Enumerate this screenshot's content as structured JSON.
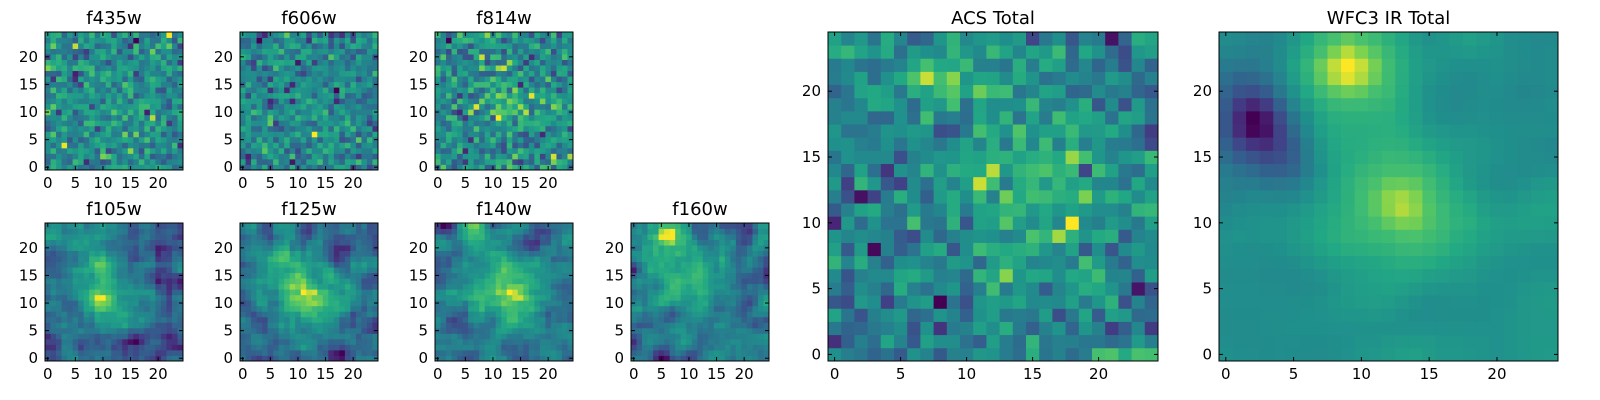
{
  "chart_data": [
    {
      "type": "heatmap",
      "title": "f435w",
      "xticks": [
        "0",
        "5",
        "10",
        "15",
        "20"
      ],
      "yticks": [
        "0",
        "5",
        "10",
        "15",
        "20"
      ],
      "xlim": [
        -0.5,
        24.5
      ],
      "ylim": [
        -0.5,
        24.5
      ],
      "colormap": "viridis",
      "grid": false,
      "seed": 11,
      "smooth": 0,
      "noise": 1.0,
      "blobs": [
        [
          13,
          12,
          0.3,
          3
        ]
      ]
    },
    {
      "type": "heatmap",
      "title": "f606w",
      "xticks": [
        "0",
        "5",
        "10",
        "15",
        "20"
      ],
      "yticks": [
        "0",
        "5",
        "10",
        "15",
        "20"
      ],
      "xlim": [
        -0.5,
        24.5
      ],
      "ylim": [
        -0.5,
        24.5
      ],
      "colormap": "viridis",
      "grid": false,
      "seed": 23,
      "smooth": 0,
      "noise": 1.0,
      "blobs": [
        [
          8,
          23,
          0.4,
          2
        ],
        [
          12,
          10,
          0.3,
          3
        ]
      ]
    },
    {
      "type": "heatmap",
      "title": "f814w",
      "xticks": [
        "0",
        "5",
        "10",
        "15",
        "20"
      ],
      "yticks": [
        "0",
        "5",
        "10",
        "15",
        "20"
      ],
      "xlim": [
        -0.5,
        24.5
      ],
      "ylim": [
        -0.5,
        24.5
      ],
      "colormap": "viridis",
      "grid": false,
      "seed": 37,
      "smooth": 0,
      "noise": 1.0,
      "blobs": [
        [
          8,
          23,
          0.6,
          2
        ],
        [
          14,
          12,
          0.6,
          3
        ]
      ]
    },
    {
      "type": "heatmap",
      "title": "f105w",
      "xticks": [
        "0",
        "5",
        "10",
        "15",
        "20"
      ],
      "yticks": [
        "0",
        "5",
        "10",
        "15",
        "20"
      ],
      "xlim": [
        -0.5,
        24.5
      ],
      "ylim": [
        -0.5,
        24.5
      ],
      "colormap": "viridis",
      "grid": false,
      "seed": 41,
      "smooth": 1,
      "noise": 0.9,
      "blobs": [
        [
          11,
          11,
          0.8,
          4
        ],
        [
          3,
          22,
          0.4,
          2
        ],
        [
          8,
          20,
          0.4,
          3
        ]
      ]
    },
    {
      "type": "heatmap",
      "title": "f125w",
      "xticks": [
        "0",
        "5",
        "10",
        "15",
        "20"
      ],
      "yticks": [
        "0",
        "5",
        "10",
        "15",
        "20"
      ],
      "xlim": [
        -0.5,
        24.5
      ],
      "ylim": [
        -0.5,
        24.5
      ],
      "colormap": "viridis",
      "grid": false,
      "seed": 53,
      "smooth": 1,
      "noise": 0.9,
      "blobs": [
        [
          12,
          11,
          0.8,
          4
        ],
        [
          7,
          18,
          0.5,
          3
        ]
      ]
    },
    {
      "type": "heatmap",
      "title": "f140w",
      "xticks": [
        "0",
        "5",
        "10",
        "15",
        "20"
      ],
      "yticks": [
        "0",
        "5",
        "10",
        "15",
        "20"
      ],
      "xlim": [
        -0.5,
        24.5
      ],
      "ylim": [
        -0.5,
        24.5
      ],
      "colormap": "viridis",
      "grid": false,
      "seed": 67,
      "smooth": 1,
      "noise": 0.9,
      "blobs": [
        [
          13,
          12,
          0.8,
          4
        ],
        [
          8,
          21,
          0.5,
          3
        ]
      ]
    },
    {
      "type": "heatmap",
      "title": "f160w",
      "xticks": [
        "0",
        "5",
        "10",
        "15",
        "20"
      ],
      "yticks": [
        "0",
        "5",
        "10",
        "15",
        "20"
      ],
      "xlim": [
        -0.5,
        24.5
      ],
      "ylim": [
        -0.5,
        24.5
      ],
      "colormap": "viridis",
      "grid": false,
      "seed": 71,
      "smooth": 1,
      "noise": 0.9,
      "blobs": [
        [
          10,
          14,
          0.7,
          4
        ],
        [
          6,
          22,
          0.6,
          3
        ]
      ]
    },
    {
      "type": "heatmap",
      "title": "ACS Total",
      "xticks": [
        "0",
        "5",
        "10",
        "15",
        "20"
      ],
      "yticks": [
        "0",
        "5",
        "10",
        "15",
        "20"
      ],
      "xlim": [
        -0.5,
        24.5
      ],
      "ylim": [
        -0.5,
        24.5
      ],
      "colormap": "viridis",
      "grid": false,
      "seed": 83,
      "smooth": 0,
      "noise": 0.8,
      "blobs": [
        [
          9,
          22,
          0.8,
          3
        ],
        [
          15,
          12,
          0.8,
          4
        ]
      ]
    },
    {
      "type": "heatmap",
      "title": "WFC3 IR Total",
      "xticks": [
        "0",
        "5",
        "10",
        "15",
        "20"
      ],
      "yticks": [
        "0",
        "5",
        "10",
        "15",
        "20"
      ],
      "xlim": [
        -0.5,
        24.5
      ],
      "ylim": [
        -0.5,
        24.5
      ],
      "colormap": "viridis",
      "grid": false,
      "seed": 97,
      "smooth": 2,
      "noise": 0.7,
      "blobs": [
        [
          9,
          22,
          1.2,
          3
        ],
        [
          13,
          11,
          1.0,
          4
        ],
        [
          2,
          18,
          -1.2,
          2
        ],
        [
          4,
          15,
          -0.6,
          2
        ]
      ]
    }
  ]
}
